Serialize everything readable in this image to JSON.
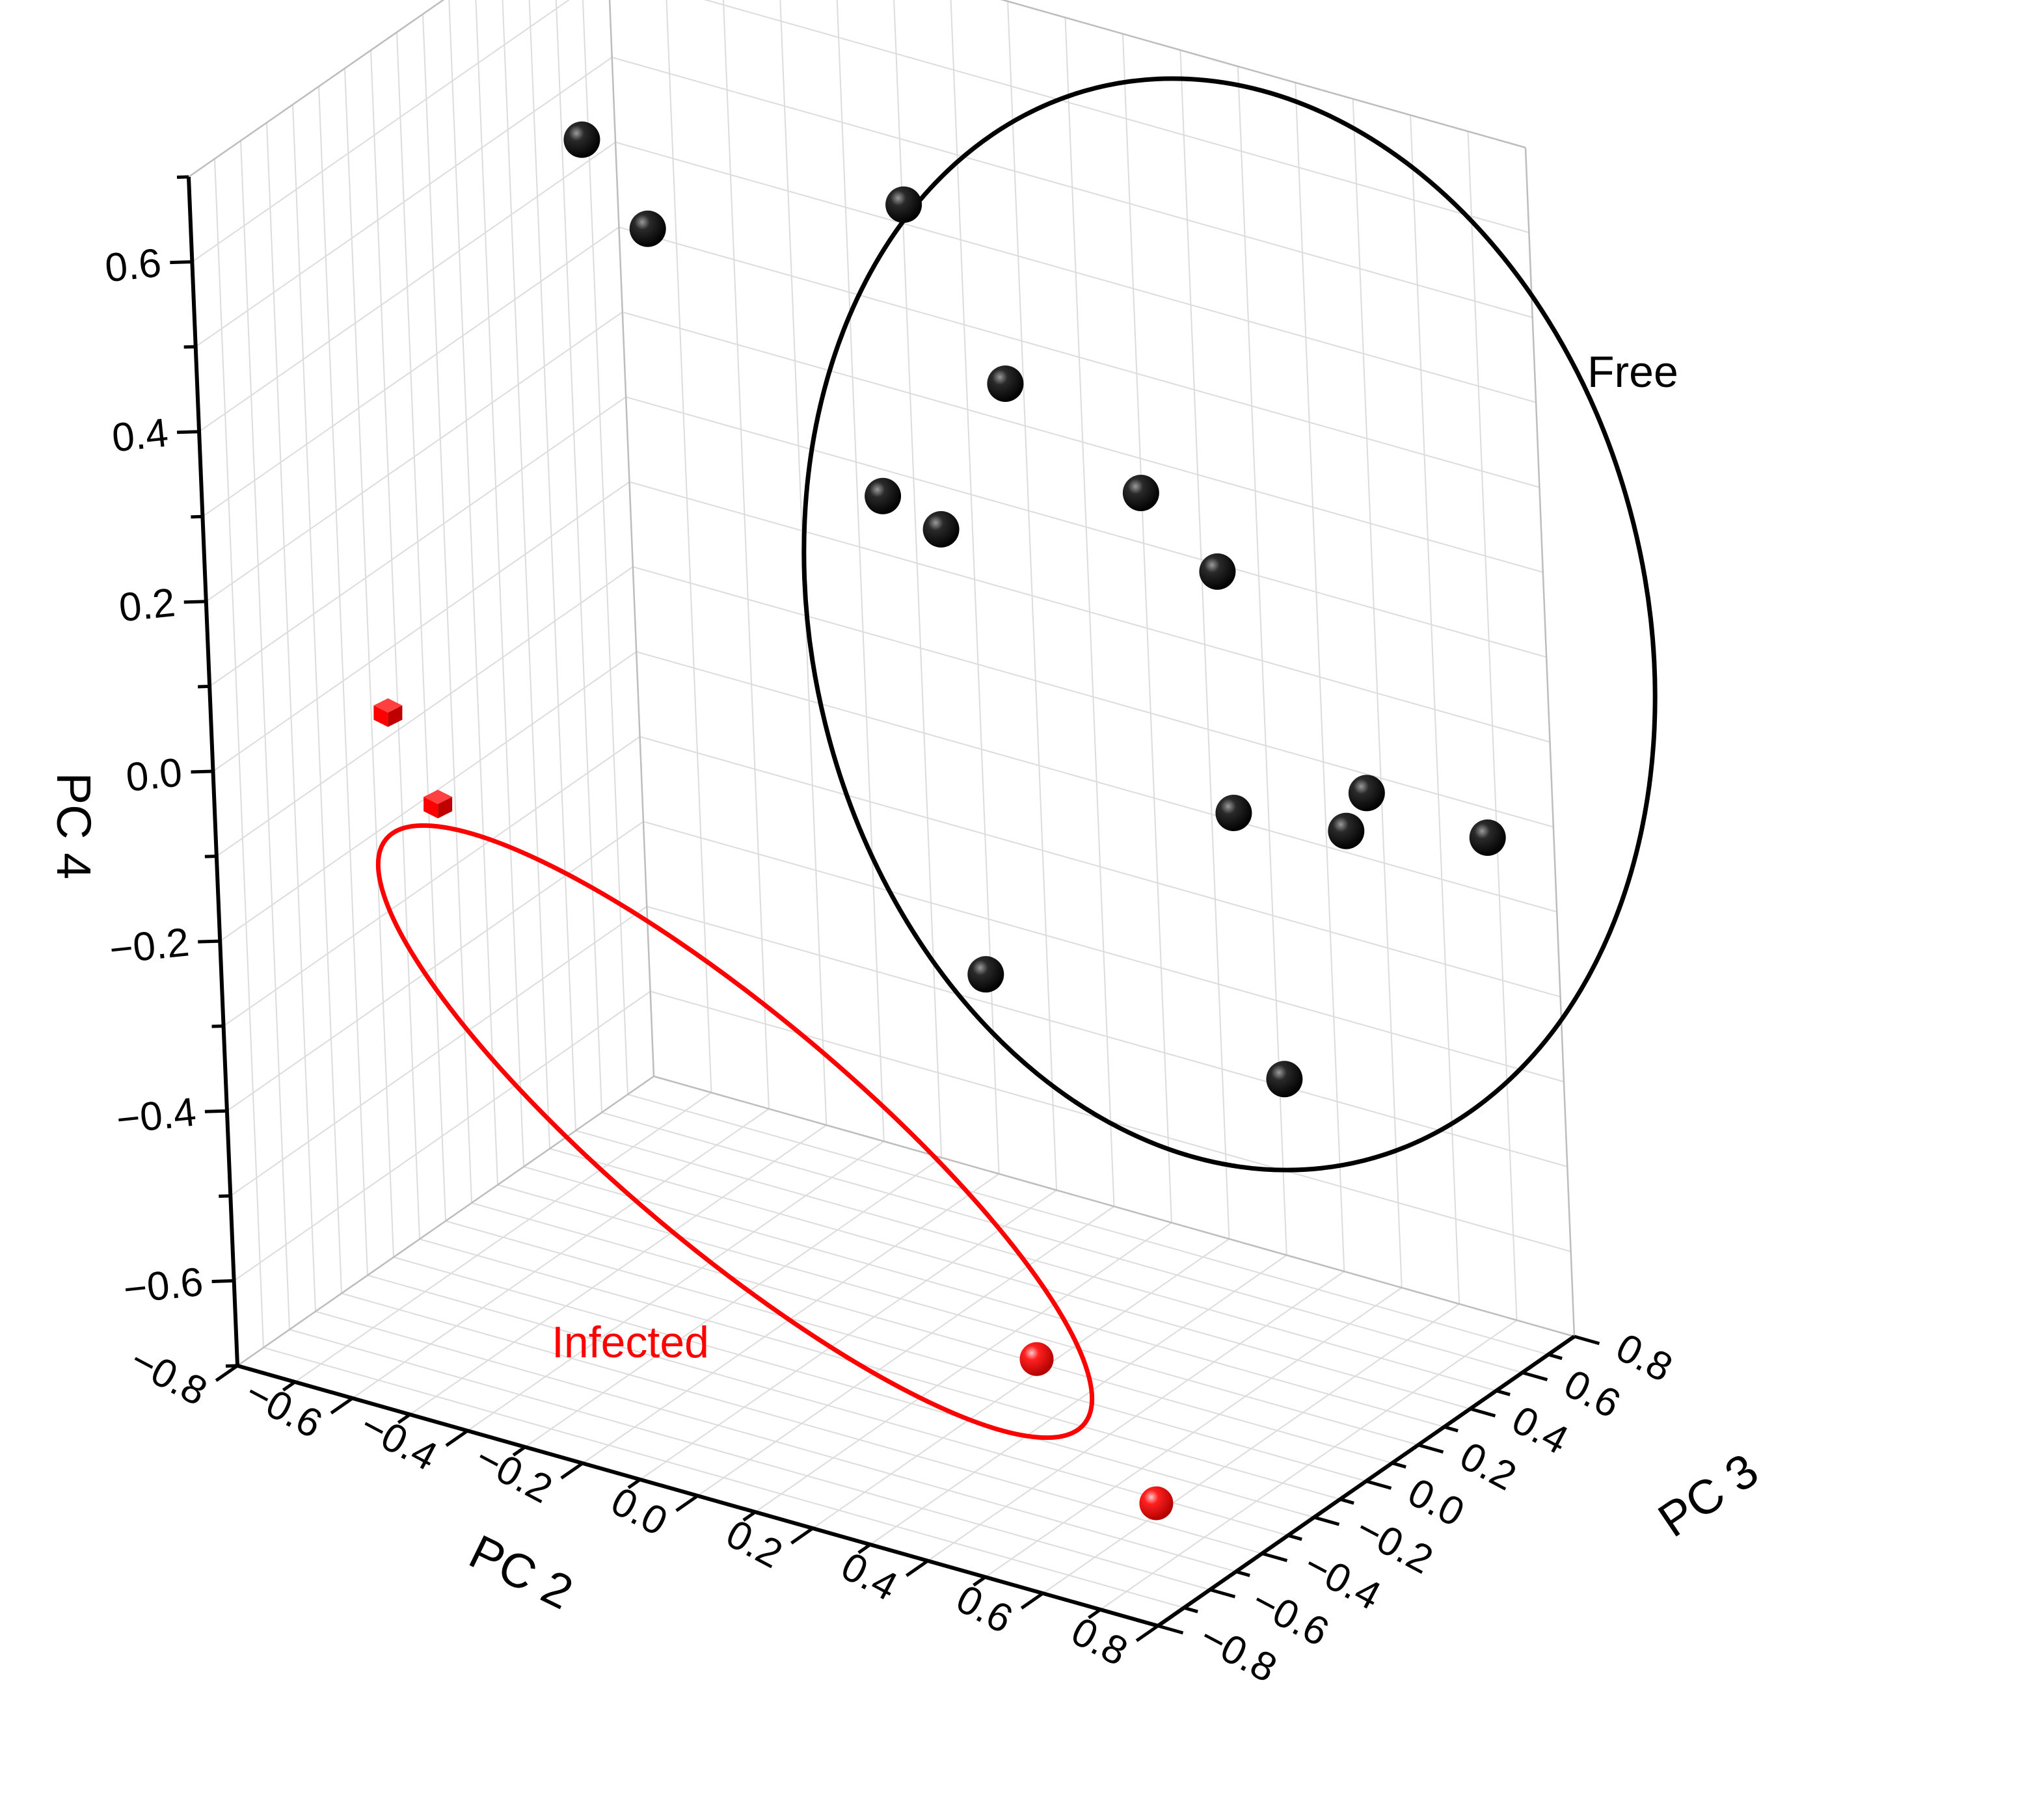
{
  "colors": {
    "free": "#000000",
    "infected": "#ff0000",
    "grid": "#dcdcdc",
    "axis": "#000000"
  },
  "chart_data": {
    "type": "scatter",
    "dimensions": 3,
    "axes": {
      "x": {
        "label": "PC 2",
        "range": [
          -0.8,
          0.8
        ],
        "ticks": [
          "−0.8",
          "−0.6",
          "−0.4",
          "−0.2",
          "0.0",
          "0.2",
          "0.4",
          "0.6",
          "0.8"
        ]
      },
      "y": {
        "label": "PC 3",
        "range": [
          -0.8,
          0.8
        ],
        "ticks": [
          "−0.8",
          "−0.6",
          "−0.4",
          "−0.2",
          "0.0",
          "0.2",
          "0.4",
          "0.6",
          "0.8"
        ]
      },
      "z": {
        "label": "PC 4",
        "range": [
          -0.7,
          0.7
        ],
        "ticks": [
          "−0.6",
          "−0.4",
          "−0.2",
          "0.0",
          "0.2",
          "0.4",
          "0.6"
        ]
      }
    },
    "grid": true,
    "groups": [
      {
        "label": "Free",
        "marker": "sphere",
        "points": [
          {
            "x": -0.52,
            "y": 0.08,
            "z": 0.61
          },
          {
            "x": -0.42,
            "y": 0.1,
            "z": 0.52
          },
          {
            "x": -0.1,
            "y": 0.38,
            "z": 0.55
          },
          {
            "x": 0.08,
            "y": 0.35,
            "z": 0.38
          },
          {
            "x": -0.12,
            "y": 0.3,
            "z": 0.22
          },
          {
            "x": -0.02,
            "y": 0.3,
            "z": 0.2
          },
          {
            "x": 0.24,
            "y": 0.5,
            "z": 0.25
          },
          {
            "x": 0.35,
            "y": 0.54,
            "z": 0.17
          },
          {
            "x": 0.38,
            "y": 0.5,
            "z": -0.1
          },
          {
            "x": 0.52,
            "y": 0.62,
            "z": -0.12
          },
          {
            "x": 0.54,
            "y": 0.66,
            "z": -0.08
          },
          {
            "x": 0.66,
            "y": 0.85,
            "z": -0.15
          },
          {
            "x": 0.05,
            "y": 0.25,
            "z": -0.3
          },
          {
            "x": 0.45,
            "y": 0.5,
            "z": -0.4
          }
        ]
      },
      {
        "label": "Infected",
        "marker": "sphere",
        "points": [
          {
            "x": 0.3,
            "y": -0.15,
            "z": -0.62
          },
          {
            "x": 0.58,
            "y": -0.32,
            "z": -0.7
          }
        ]
      },
      {
        "label": "Infected",
        "marker": "cube",
        "points": [
          {
            "x": -0.78,
            "y": -0.18,
            "z": -0.06
          },
          {
            "x": -0.68,
            "y": -0.22,
            "z": -0.14
          }
        ]
      }
    ]
  },
  "annotations": {
    "free_label": "Free",
    "infected_label": "Infected"
  }
}
